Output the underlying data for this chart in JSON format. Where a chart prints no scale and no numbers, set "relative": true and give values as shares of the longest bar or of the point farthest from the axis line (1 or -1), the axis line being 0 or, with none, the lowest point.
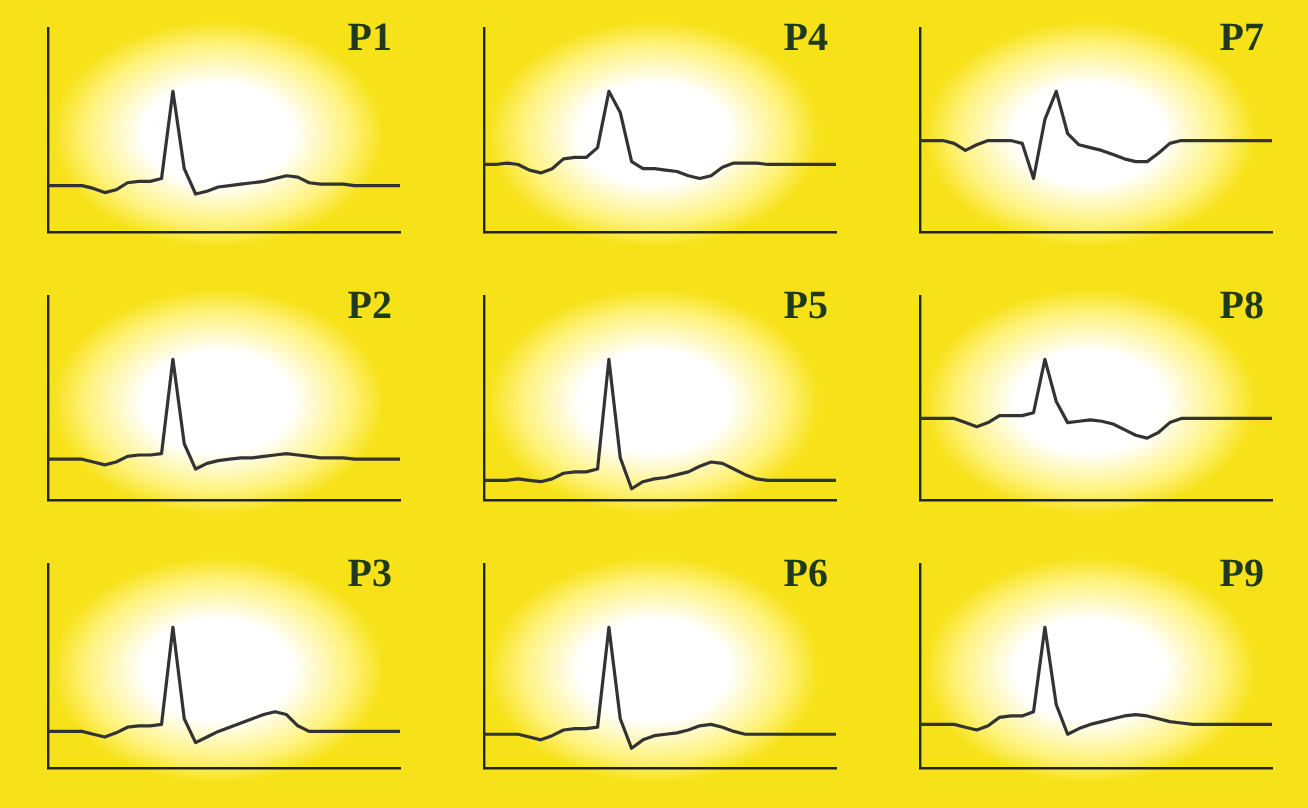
{
  "chart_data": [
    {
      "type": "line",
      "title": "P1",
      "relative": true,
      "tick_labels": false,
      "grid": false,
      "legend": false,
      "marker": "none",
      "categories": [
        null,
        null,
        null,
        null,
        null,
        null,
        null,
        null,
        null,
        null,
        null,
        null,
        null,
        null,
        null,
        null,
        null,
        null,
        null,
        null,
        null,
        null,
        null,
        null,
        null,
        null,
        null,
        null,
        null,
        null,
        null,
        null
      ],
      "series": [
        {
          "color": "#333333",
          "values": [
            0.33,
            0.33,
            0.33,
            0.33,
            0.31,
            0.28,
            0.3,
            0.35,
            0.36,
            0.36,
            0.38,
            1.0,
            0.45,
            0.27,
            0.29,
            0.32,
            0.33,
            0.34,
            0.35,
            0.36,
            0.38,
            0.4,
            0.39,
            0.35,
            0.34,
            0.34,
            0.34,
            0.33,
            0.33,
            0.33,
            0.33,
            0.33
          ]
        }
      ]
    },
    {
      "type": "line",
      "title": "P4",
      "relative": true,
      "tick_labels": false,
      "grid": false,
      "legend": false,
      "marker": "none",
      "categories": [
        null,
        null,
        null,
        null,
        null,
        null,
        null,
        null,
        null,
        null,
        null,
        null,
        null,
        null,
        null,
        null,
        null,
        null,
        null,
        null,
        null,
        null,
        null,
        null,
        null,
        null,
        null,
        null,
        null,
        null,
        null,
        null
      ],
      "series": [
        {
          "color": "#333333",
          "values": [
            0.48,
            0.48,
            0.49,
            0.48,
            0.44,
            0.42,
            0.45,
            0.52,
            0.53,
            0.53,
            0.6,
            1.0,
            0.85,
            0.5,
            0.45,
            0.45,
            0.44,
            0.43,
            0.4,
            0.38,
            0.4,
            0.46,
            0.49,
            0.49,
            0.49,
            0.48,
            0.48,
            0.48,
            0.48,
            0.48,
            0.48,
            0.48
          ]
        }
      ]
    },
    {
      "type": "line",
      "title": "P7",
      "relative": true,
      "tick_labels": false,
      "grid": false,
      "legend": false,
      "marker": "none",
      "categories": [
        null,
        null,
        null,
        null,
        null,
        null,
        null,
        null,
        null,
        null,
        null,
        null,
        null,
        null,
        null,
        null,
        null,
        null,
        null,
        null,
        null,
        null,
        null,
        null,
        null,
        null,
        null,
        null,
        null,
        null,
        null,
        null
      ],
      "series": [
        {
          "color": "#333333",
          "values": [
            0.65,
            0.65,
            0.65,
            0.63,
            0.58,
            0.62,
            0.65,
            0.65,
            0.65,
            0.63,
            0.38,
            0.8,
            1.0,
            0.7,
            0.62,
            0.6,
            0.58,
            0.55,
            0.52,
            0.5,
            0.5,
            0.56,
            0.63,
            0.65,
            0.65,
            0.65,
            0.65,
            0.65,
            0.65,
            0.65,
            0.65,
            0.65
          ]
        }
      ]
    },
    {
      "type": "line",
      "title": "P2",
      "relative": true,
      "tick_labels": false,
      "grid": false,
      "legend": false,
      "marker": "none",
      "categories": [
        null,
        null,
        null,
        null,
        null,
        null,
        null,
        null,
        null,
        null,
        null,
        null,
        null,
        null,
        null,
        null,
        null,
        null,
        null,
        null,
        null,
        null,
        null,
        null,
        null,
        null,
        null,
        null,
        null,
        null,
        null,
        null
      ],
      "series": [
        {
          "color": "#333333",
          "values": [
            0.29,
            0.29,
            0.29,
            0.29,
            0.27,
            0.25,
            0.27,
            0.31,
            0.32,
            0.32,
            0.33,
            1.0,
            0.4,
            0.22,
            0.26,
            0.28,
            0.29,
            0.3,
            0.3,
            0.31,
            0.32,
            0.33,
            0.32,
            0.31,
            0.3,
            0.3,
            0.3,
            0.29,
            0.29,
            0.29,
            0.29,
            0.29
          ]
        }
      ]
    },
    {
      "type": "line",
      "title": "P5",
      "relative": true,
      "tick_labels": false,
      "grid": false,
      "legend": false,
      "marker": "none",
      "categories": [
        null,
        null,
        null,
        null,
        null,
        null,
        null,
        null,
        null,
        null,
        null,
        null,
        null,
        null,
        null,
        null,
        null,
        null,
        null,
        null,
        null,
        null,
        null,
        null,
        null,
        null,
        null,
        null,
        null,
        null,
        null,
        null
      ],
      "series": [
        {
          "color": "#333333",
          "values": [
            0.14,
            0.14,
            0.14,
            0.15,
            0.14,
            0.13,
            0.15,
            0.19,
            0.2,
            0.2,
            0.22,
            1.0,
            0.3,
            0.08,
            0.13,
            0.15,
            0.16,
            0.18,
            0.2,
            0.24,
            0.27,
            0.26,
            0.22,
            0.18,
            0.15,
            0.14,
            0.14,
            0.14,
            0.14,
            0.14,
            0.14,
            0.14
          ]
        }
      ]
    },
    {
      "type": "line",
      "title": "P8",
      "relative": true,
      "tick_labels": false,
      "grid": false,
      "legend": false,
      "marker": "none",
      "categories": [
        null,
        null,
        null,
        null,
        null,
        null,
        null,
        null,
        null,
        null,
        null,
        null,
        null,
        null,
        null,
        null,
        null,
        null,
        null,
        null,
        null,
        null,
        null,
        null,
        null,
        null,
        null,
        null,
        null,
        null,
        null,
        null
      ],
      "series": [
        {
          "color": "#333333",
          "values": [
            0.58,
            0.58,
            0.58,
            0.58,
            0.55,
            0.52,
            0.55,
            0.6,
            0.6,
            0.6,
            0.62,
            1.0,
            0.7,
            0.55,
            0.56,
            0.57,
            0.56,
            0.54,
            0.5,
            0.46,
            0.44,
            0.48,
            0.55,
            0.58,
            0.58,
            0.58,
            0.58,
            0.58,
            0.58,
            0.58,
            0.58,
            0.58
          ]
        }
      ]
    },
    {
      "type": "line",
      "title": "P3",
      "relative": true,
      "tick_labels": false,
      "grid": false,
      "legend": false,
      "marker": "none",
      "categories": [
        null,
        null,
        null,
        null,
        null,
        null,
        null,
        null,
        null,
        null,
        null,
        null,
        null,
        null,
        null,
        null,
        null,
        null,
        null,
        null,
        null,
        null,
        null,
        null,
        null,
        null,
        null,
        null,
        null,
        null,
        null,
        null
      ],
      "series": [
        {
          "color": "#333333",
          "values": [
            0.26,
            0.26,
            0.26,
            0.26,
            0.24,
            0.22,
            0.25,
            0.29,
            0.3,
            0.3,
            0.31,
            1.0,
            0.35,
            0.18,
            0.22,
            0.26,
            0.29,
            0.32,
            0.35,
            0.38,
            0.4,
            0.38,
            0.3,
            0.26,
            0.26,
            0.26,
            0.26,
            0.26,
            0.26,
            0.26,
            0.26,
            0.26
          ]
        }
      ]
    },
    {
      "type": "line",
      "title": "P6",
      "relative": true,
      "tick_labels": false,
      "grid": false,
      "legend": false,
      "marker": "none",
      "categories": [
        null,
        null,
        null,
        null,
        null,
        null,
        null,
        null,
        null,
        null,
        null,
        null,
        null,
        null,
        null,
        null,
        null,
        null,
        null,
        null,
        null,
        null,
        null,
        null,
        null,
        null,
        null,
        null,
        null,
        null,
        null,
        null
      ],
      "series": [
        {
          "color": "#333333",
          "values": [
            0.24,
            0.24,
            0.24,
            0.24,
            0.22,
            0.2,
            0.23,
            0.27,
            0.28,
            0.28,
            0.29,
            1.0,
            0.35,
            0.14,
            0.2,
            0.23,
            0.24,
            0.25,
            0.27,
            0.3,
            0.31,
            0.29,
            0.26,
            0.24,
            0.24,
            0.24,
            0.24,
            0.24,
            0.24,
            0.24,
            0.24,
            0.24
          ]
        }
      ]
    },
    {
      "type": "line",
      "title": "P9",
      "relative": true,
      "tick_labels": false,
      "grid": false,
      "legend": false,
      "marker": "none",
      "categories": [
        null,
        null,
        null,
        null,
        null,
        null,
        null,
        null,
        null,
        null,
        null,
        null,
        null,
        null,
        null,
        null,
        null,
        null,
        null,
        null,
        null,
        null,
        null,
        null,
        null,
        null,
        null,
        null,
        null,
        null,
        null,
        null
      ],
      "series": [
        {
          "color": "#333333",
          "values": [
            0.31,
            0.31,
            0.31,
            0.31,
            0.29,
            0.27,
            0.3,
            0.36,
            0.37,
            0.37,
            0.4,
            1.0,
            0.45,
            0.24,
            0.28,
            0.31,
            0.33,
            0.35,
            0.37,
            0.38,
            0.37,
            0.35,
            0.33,
            0.32,
            0.31,
            0.31,
            0.31,
            0.31,
            0.31,
            0.31,
            0.31,
            0.31
          ]
        }
      ]
    }
  ]
}
